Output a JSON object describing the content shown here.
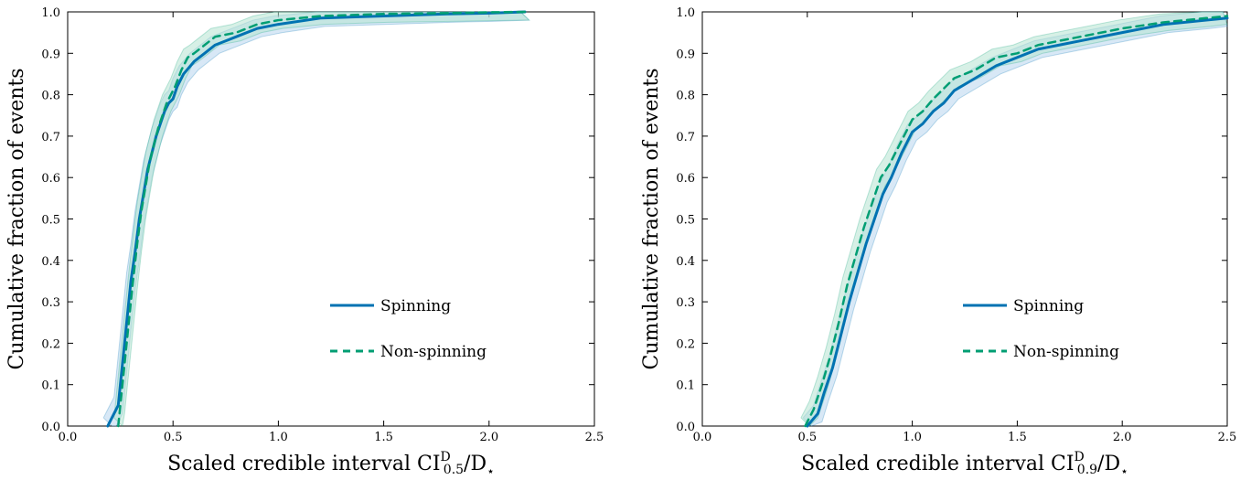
{
  "colors": {
    "spinning": "#0072b2",
    "non_spinning": "#009e73",
    "spinning_band": "#b8d6ee",
    "non_spinning_band": "#b7e3d2"
  },
  "chart_data": [
    {
      "type": "line",
      "title": "",
      "xlabel": {
        "prefix": "Scaled credible interval CI",
        "sup": "D",
        "sub": "0.5",
        "suffix": "/D",
        "star": "⋆"
      },
      "ylabel": "Cumulative fraction of events",
      "xlim": [
        0.0,
        2.5
      ],
      "ylim": [
        0.0,
        1.0
      ],
      "xticks": [
        "0.0",
        "0.5",
        "1.0",
        "1.5",
        "2.0",
        "2.5"
      ],
      "yticks": [
        "0.0",
        "0.1",
        "0.2",
        "0.3",
        "0.4",
        "0.5",
        "0.6",
        "0.7",
        "0.8",
        "0.9",
        "1.0"
      ],
      "grid": false,
      "legend_position": "lower-right",
      "series": [
        {
          "name": "Spinning",
          "style": "solid",
          "x": [
            0.19,
            0.21,
            0.24,
            0.26,
            0.28,
            0.3,
            0.32,
            0.34,
            0.36,
            0.38,
            0.4,
            0.42,
            0.44,
            0.46,
            0.48,
            0.5,
            0.52,
            0.55,
            0.6,
            0.65,
            0.7,
            0.75,
            0.8,
            0.9,
            1.0,
            1.2,
            1.5,
            1.8,
            2.0,
            2.17
          ],
          "y": [
            0.0,
            0.02,
            0.05,
            0.15,
            0.25,
            0.35,
            0.42,
            0.5,
            0.56,
            0.62,
            0.66,
            0.7,
            0.73,
            0.76,
            0.78,
            0.79,
            0.82,
            0.85,
            0.88,
            0.9,
            0.92,
            0.93,
            0.94,
            0.96,
            0.97,
            0.985,
            0.99,
            0.995,
            0.997,
            1.0
          ]
        },
        {
          "name": "Non-spinning",
          "style": "dashed",
          "x": [
            0.24,
            0.25,
            0.27,
            0.29,
            0.31,
            0.33,
            0.35,
            0.37,
            0.39,
            0.41,
            0.43,
            0.45,
            0.47,
            0.49,
            0.51,
            0.54,
            0.57,
            0.6,
            0.65,
            0.7,
            0.8,
            0.9,
            1.0,
            1.2,
            1.5,
            1.8,
            2.0,
            2.17
          ],
          "y": [
            0.0,
            0.05,
            0.15,
            0.25,
            0.35,
            0.44,
            0.52,
            0.58,
            0.64,
            0.68,
            0.72,
            0.75,
            0.78,
            0.8,
            0.82,
            0.86,
            0.89,
            0.9,
            0.92,
            0.94,
            0.95,
            0.97,
            0.98,
            0.99,
            0.995,
            0.997,
            0.999,
            1.0
          ]
        }
      ]
    },
    {
      "type": "line",
      "title": "",
      "xlabel": {
        "prefix": "Scaled credible interval CI",
        "sup": "D",
        "sub": "0.9",
        "suffix": "/D",
        "star": "⋆"
      },
      "ylabel": "Cumulative fraction of events",
      "xlim": [
        0.0,
        2.5
      ],
      "ylim": [
        0.0,
        1.0
      ],
      "xticks": [
        "0.0",
        "0.5",
        "1.0",
        "1.5",
        "2.0",
        "2.5"
      ],
      "yticks": [
        "0.0",
        "0.1",
        "0.2",
        "0.3",
        "0.4",
        "0.5",
        "0.6",
        "0.7",
        "0.8",
        "0.9",
        "1.0"
      ],
      "grid": false,
      "legend_position": "lower-right",
      "series": [
        {
          "name": "Spinning",
          "style": "solid",
          "x": [
            0.5,
            0.55,
            0.58,
            0.62,
            0.66,
            0.7,
            0.74,
            0.78,
            0.82,
            0.86,
            0.9,
            0.95,
            1.0,
            1.05,
            1.1,
            1.15,
            1.2,
            1.3,
            1.4,
            1.5,
            1.6,
            1.7,
            1.8,
            2.0,
            2.2,
            2.4,
            2.5
          ],
          "y": [
            0.0,
            0.03,
            0.08,
            0.14,
            0.22,
            0.3,
            0.37,
            0.44,
            0.5,
            0.56,
            0.6,
            0.66,
            0.71,
            0.73,
            0.76,
            0.78,
            0.81,
            0.84,
            0.87,
            0.89,
            0.91,
            0.92,
            0.93,
            0.95,
            0.97,
            0.98,
            0.985
          ]
        },
        {
          "name": "Non-spinning",
          "style": "dashed",
          "x": [
            0.49,
            0.53,
            0.57,
            0.61,
            0.65,
            0.69,
            0.73,
            0.77,
            0.81,
            0.85,
            0.89,
            0.94,
            1.0,
            1.05,
            1.1,
            1.2,
            1.3,
            1.4,
            1.5,
            1.6,
            1.8,
            2.0,
            2.2,
            2.4,
            2.5
          ],
          "y": [
            0.0,
            0.04,
            0.1,
            0.17,
            0.25,
            0.34,
            0.41,
            0.48,
            0.54,
            0.6,
            0.63,
            0.68,
            0.74,
            0.76,
            0.79,
            0.84,
            0.86,
            0.89,
            0.9,
            0.92,
            0.94,
            0.96,
            0.975,
            0.985,
            0.99
          ]
        }
      ]
    }
  ]
}
